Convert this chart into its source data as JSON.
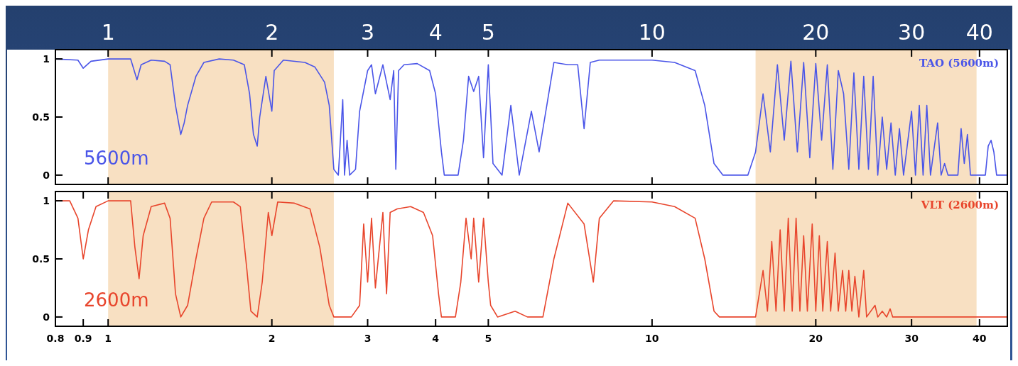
{
  "chart_data": [
    {
      "type": "line",
      "log": "x",
      "xlim": [
        0.8,
        45
      ],
      "ylim": [
        -0.08,
        1.08
      ],
      "yticks": [
        0,
        0.5,
        1
      ],
      "xticks": [
        1,
        2,
        3,
        4,
        5,
        10,
        20,
        30,
        40
      ],
      "annotations": [
        "5600m"
      ],
      "bands": [
        {
          "axis": "x",
          "from": 1.0,
          "to": 2.6,
          "color": "#f8e0c2"
        },
        {
          "axis": "x",
          "from": 15.5,
          "to": 39.5,
          "color": "#f8e0c2"
        }
      ],
      "series": [
        {
          "name": "TAO (5600m)",
          "color": "#4a55e8",
          "x": [
            0.8,
            0.88,
            0.9,
            0.93,
            1.0,
            1.1,
            1.13,
            1.15,
            1.2,
            1.27,
            1.3,
            1.33,
            1.36,
            1.38,
            1.4,
            1.45,
            1.5,
            1.6,
            1.7,
            1.78,
            1.82,
            1.85,
            1.88,
            1.9,
            1.95,
            2.0,
            2.02,
            2.1,
            2.3,
            2.4,
            2.5,
            2.55,
            2.6,
            2.65,
            2.7,
            2.72,
            2.75,
            2.78,
            2.85,
            2.9,
            3.0,
            3.05,
            3.1,
            3.2,
            3.3,
            3.35,
            3.38,
            3.42,
            3.5,
            3.7,
            3.9,
            4.0,
            4.1,
            4.15,
            4.4,
            4.5,
            4.6,
            4.7,
            4.8,
            4.9,
            5.0,
            5.1,
            5.3,
            5.5,
            5.7,
            6.0,
            6.2,
            6.6,
            7.0,
            7.3,
            7.5,
            7.7,
            8.0,
            9.0,
            10.0,
            11.0,
            12.0,
            12.5,
            13.0,
            13.5,
            15.0,
            15.5,
            16.0,
            16.5,
            17.0,
            17.5,
            18.0,
            18.5,
            19.0,
            19.5,
            20.0,
            20.5,
            21.0,
            21.5,
            22.0,
            22.5,
            23.0,
            23.5,
            24.0,
            24.5,
            25.0,
            25.5,
            26.0,
            26.5,
            27.0,
            27.5,
            28.0,
            28.5,
            29.0,
            30.0,
            30.5,
            31.0,
            31.5,
            32.0,
            32.5,
            33.5,
            34.0,
            34.5,
            35.0,
            36.5,
            37.0,
            37.5,
            38.0,
            38.5,
            41.0,
            41.5,
            42.0,
            42.5,
            43.0,
            45.0
          ],
          "values": [
            1.0,
            0.99,
            0.92,
            0.98,
            1.0,
            1.0,
            0.82,
            0.95,
            0.99,
            0.98,
            0.95,
            0.6,
            0.35,
            0.45,
            0.6,
            0.85,
            0.97,
            1.0,
            0.99,
            0.95,
            0.7,
            0.35,
            0.25,
            0.5,
            0.85,
            0.55,
            0.9,
            0.99,
            0.97,
            0.93,
            0.8,
            0.6,
            0.05,
            0.0,
            0.65,
            0.0,
            0.3,
            0.0,
            0.05,
            0.55,
            0.9,
            0.95,
            0.7,
            0.95,
            0.65,
            0.9,
            0.05,
            0.9,
            0.95,
            0.96,
            0.9,
            0.7,
            0.2,
            0.0,
            0.0,
            0.3,
            0.85,
            0.72,
            0.85,
            0.15,
            0.95,
            0.1,
            0.0,
            0.6,
            0.0,
            0.55,
            0.2,
            0.97,
            0.95,
            0.95,
            0.4,
            0.97,
            0.99,
            0.99,
            0.99,
            0.97,
            0.9,
            0.6,
            0.1,
            0.0,
            0.0,
            0.2,
            0.7,
            0.2,
            0.95,
            0.3,
            0.98,
            0.2,
            0.97,
            0.15,
            0.96,
            0.3,
            0.95,
            0.05,
            0.9,
            0.7,
            0.05,
            0.88,
            0.05,
            0.85,
            0.05,
            0.85,
            0.0,
            0.5,
            0.05,
            0.45,
            0.0,
            0.4,
            0.0,
            0.55,
            0.0,
            0.6,
            0.0,
            0.6,
            0.0,
            0.45,
            0.0,
            0.1,
            0.0,
            0.0,
            0.4,
            0.1,
            0.35,
            0.0,
            0.0,
            0.25,
            0.3,
            0.2,
            0.0,
            0.0
          ]
        }
      ]
    },
    {
      "type": "line",
      "log": "x",
      "xlim": [
        0.8,
        45
      ],
      "ylim": [
        -0.08,
        1.08
      ],
      "yticks": [
        0,
        0.5,
        1
      ],
      "xticks": [
        0.8,
        0.9,
        1,
        2,
        3,
        4,
        5,
        10,
        20,
        30,
        40
      ],
      "annotations": [
        "2600m"
      ],
      "bands": [
        {
          "axis": "x",
          "from": 1.0,
          "to": 2.6,
          "color": "#f8e0c2"
        },
        {
          "axis": "x",
          "from": 15.5,
          "to": 39.5,
          "color": "#f8e0c2"
        }
      ],
      "series": [
        {
          "name": "VLT (2600m)",
          "color": "#e8452c",
          "x": [
            0.8,
            0.85,
            0.88,
            0.9,
            0.92,
            0.95,
            1.0,
            1.1,
            1.12,
            1.14,
            1.16,
            1.2,
            1.27,
            1.3,
            1.33,
            1.36,
            1.4,
            1.45,
            1.5,
            1.55,
            1.7,
            1.75,
            1.8,
            1.83,
            1.88,
            1.92,
            1.97,
            2.0,
            2.05,
            2.2,
            2.35,
            2.45,
            2.55,
            2.6,
            2.8,
            2.9,
            2.95,
            3.0,
            3.05,
            3.1,
            3.2,
            3.25,
            3.3,
            3.4,
            3.6,
            3.8,
            3.95,
            4.05,
            4.1,
            4.35,
            4.45,
            4.55,
            4.65,
            4.7,
            4.8,
            4.9,
            5.0,
            5.05,
            5.2,
            5.6,
            5.9,
            6.3,
            6.6,
            7.0,
            7.5,
            7.8,
            8.0,
            8.5,
            10.0,
            11.0,
            12.0,
            12.5,
            13.0,
            13.3,
            15.5,
            16.0,
            16.3,
            16.6,
            16.9,
            17.2,
            17.5,
            17.8,
            18.1,
            18.4,
            18.7,
            19.0,
            19.3,
            19.7,
            20.0,
            20.3,
            20.6,
            21.0,
            21.3,
            21.7,
            22.0,
            22.4,
            22.7,
            23.0,
            23.3,
            23.6,
            24.0,
            24.5,
            24.8,
            25.7,
            26.0,
            26.5,
            27.0,
            27.4,
            27.7,
            45.0
          ],
          "values": [
            1.0,
            1.0,
            0.85,
            0.5,
            0.75,
            0.95,
            1.0,
            1.0,
            0.6,
            0.33,
            0.7,
            0.95,
            0.98,
            0.85,
            0.2,
            0.0,
            0.1,
            0.5,
            0.85,
            0.99,
            0.99,
            0.95,
            0.4,
            0.05,
            0.0,
            0.3,
            0.9,
            0.7,
            0.99,
            0.98,
            0.93,
            0.6,
            0.1,
            0.0,
            0.0,
            0.1,
            0.8,
            0.3,
            0.85,
            0.25,
            0.9,
            0.2,
            0.9,
            0.93,
            0.95,
            0.9,
            0.7,
            0.2,
            0.0,
            0.0,
            0.3,
            0.85,
            0.5,
            0.85,
            0.3,
            0.85,
            0.3,
            0.1,
            0.0,
            0.05,
            0.0,
            0.0,
            0.5,
            0.98,
            0.8,
            0.3,
            0.85,
            1.0,
            0.99,
            0.95,
            0.85,
            0.5,
            0.05,
            0.0,
            0.0,
            0.4,
            0.05,
            0.65,
            0.05,
            0.75,
            0.05,
            0.85,
            0.05,
            0.85,
            0.05,
            0.7,
            0.05,
            0.8,
            0.05,
            0.7,
            0.05,
            0.65,
            0.05,
            0.55,
            0.05,
            0.4,
            0.05,
            0.4,
            0.05,
            0.35,
            0.0,
            0.4,
            0.0,
            0.1,
            0.0,
            0.05,
            0.0,
            0.07,
            0.0,
            0.0
          ]
        }
      ]
    }
  ]
}
